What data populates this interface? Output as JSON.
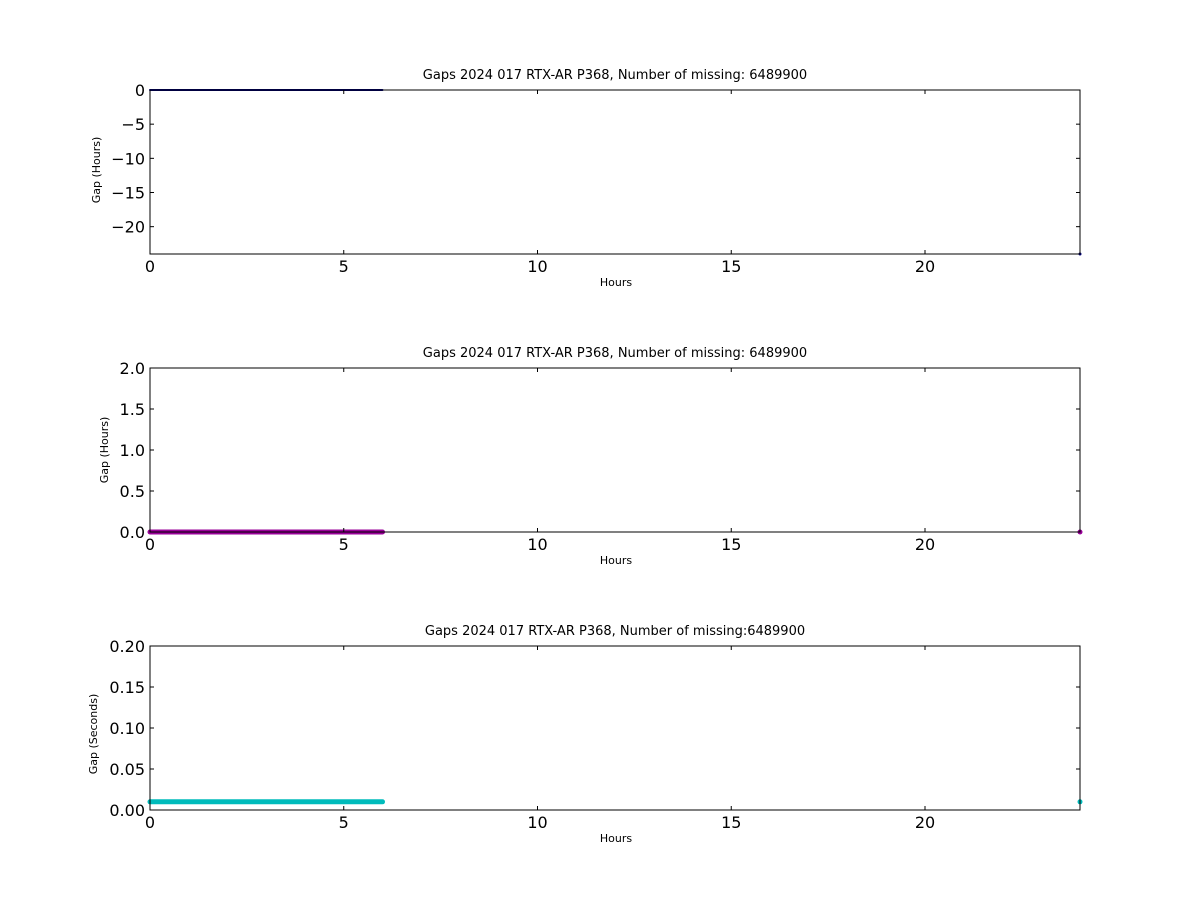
{
  "chart_data": [
    {
      "type": "scatter",
      "title": "Gaps 2024 017 RTX-AR  P368, Number of missing: 6489900",
      "xlabel": "Hours",
      "ylabel": "Gap (Hours)",
      "xlim": [
        0,
        24
      ],
      "ylim": [
        -24,
        0
      ],
      "xticks": [
        "0",
        "5",
        "10",
        "15",
        "20"
      ],
      "xtick_values": [
        0,
        5,
        10,
        15,
        20
      ],
      "yticks": [
        "0",
        "−5",
        "−10",
        "−15",
        "−20"
      ],
      "ytick_values": [
        0,
        -5,
        -10,
        -15,
        -20
      ],
      "grid": false,
      "color": "#000080",
      "segments": [
        {
          "x_start": 0.0,
          "x_end": 6.0,
          "y": 0.0
        }
      ],
      "points": [
        {
          "x": 24.0,
          "y": -24.0
        }
      ]
    },
    {
      "type": "scatter",
      "title": "Gaps 2024 017 RTX-AR  P368, Number of missing: 6489900",
      "xlabel": "Hours",
      "ylabel": "Gap (Hours)",
      "xlim": [
        0,
        24
      ],
      "ylim": [
        0,
        2
      ],
      "xticks": [
        "0",
        "5",
        "10",
        "15",
        "20"
      ],
      "xtick_values": [
        0,
        5,
        10,
        15,
        20
      ],
      "yticks": [
        "0.0",
        "0.5",
        "1.0",
        "1.5",
        "2.0"
      ],
      "ytick_values": [
        0,
        0.5,
        1.0,
        1.5,
        2.0
      ],
      "grid": false,
      "color": "#990099",
      "segments": [
        {
          "x_start": 0.0,
          "x_end": 6.0,
          "y": 0.0
        }
      ],
      "points": [
        {
          "x": 24.0,
          "y": 0.0
        }
      ]
    },
    {
      "type": "scatter",
      "title": "Gaps 2024 017 RTX-AR  P368, Number of missing:6489900",
      "xlabel": "Hours",
      "ylabel": "Gap (Seconds)",
      "xlim": [
        0,
        24
      ],
      "ylim": [
        0,
        0.2
      ],
      "xticks": [
        "0",
        "5",
        "10",
        "15",
        "20"
      ],
      "xtick_values": [
        0,
        5,
        10,
        15,
        20
      ],
      "yticks": [
        "0.00",
        "0.05",
        "0.10",
        "0.15",
        "0.20"
      ],
      "ytick_values": [
        0,
        0.05,
        0.1,
        0.15,
        0.2
      ],
      "grid": false,
      "color": "#00bbbb",
      "segments": [
        {
          "x_start": 0.0,
          "x_end": 6.0,
          "y": 0.01
        }
      ],
      "points": [
        {
          "x": 24.0,
          "y": 0.01
        }
      ]
    }
  ]
}
